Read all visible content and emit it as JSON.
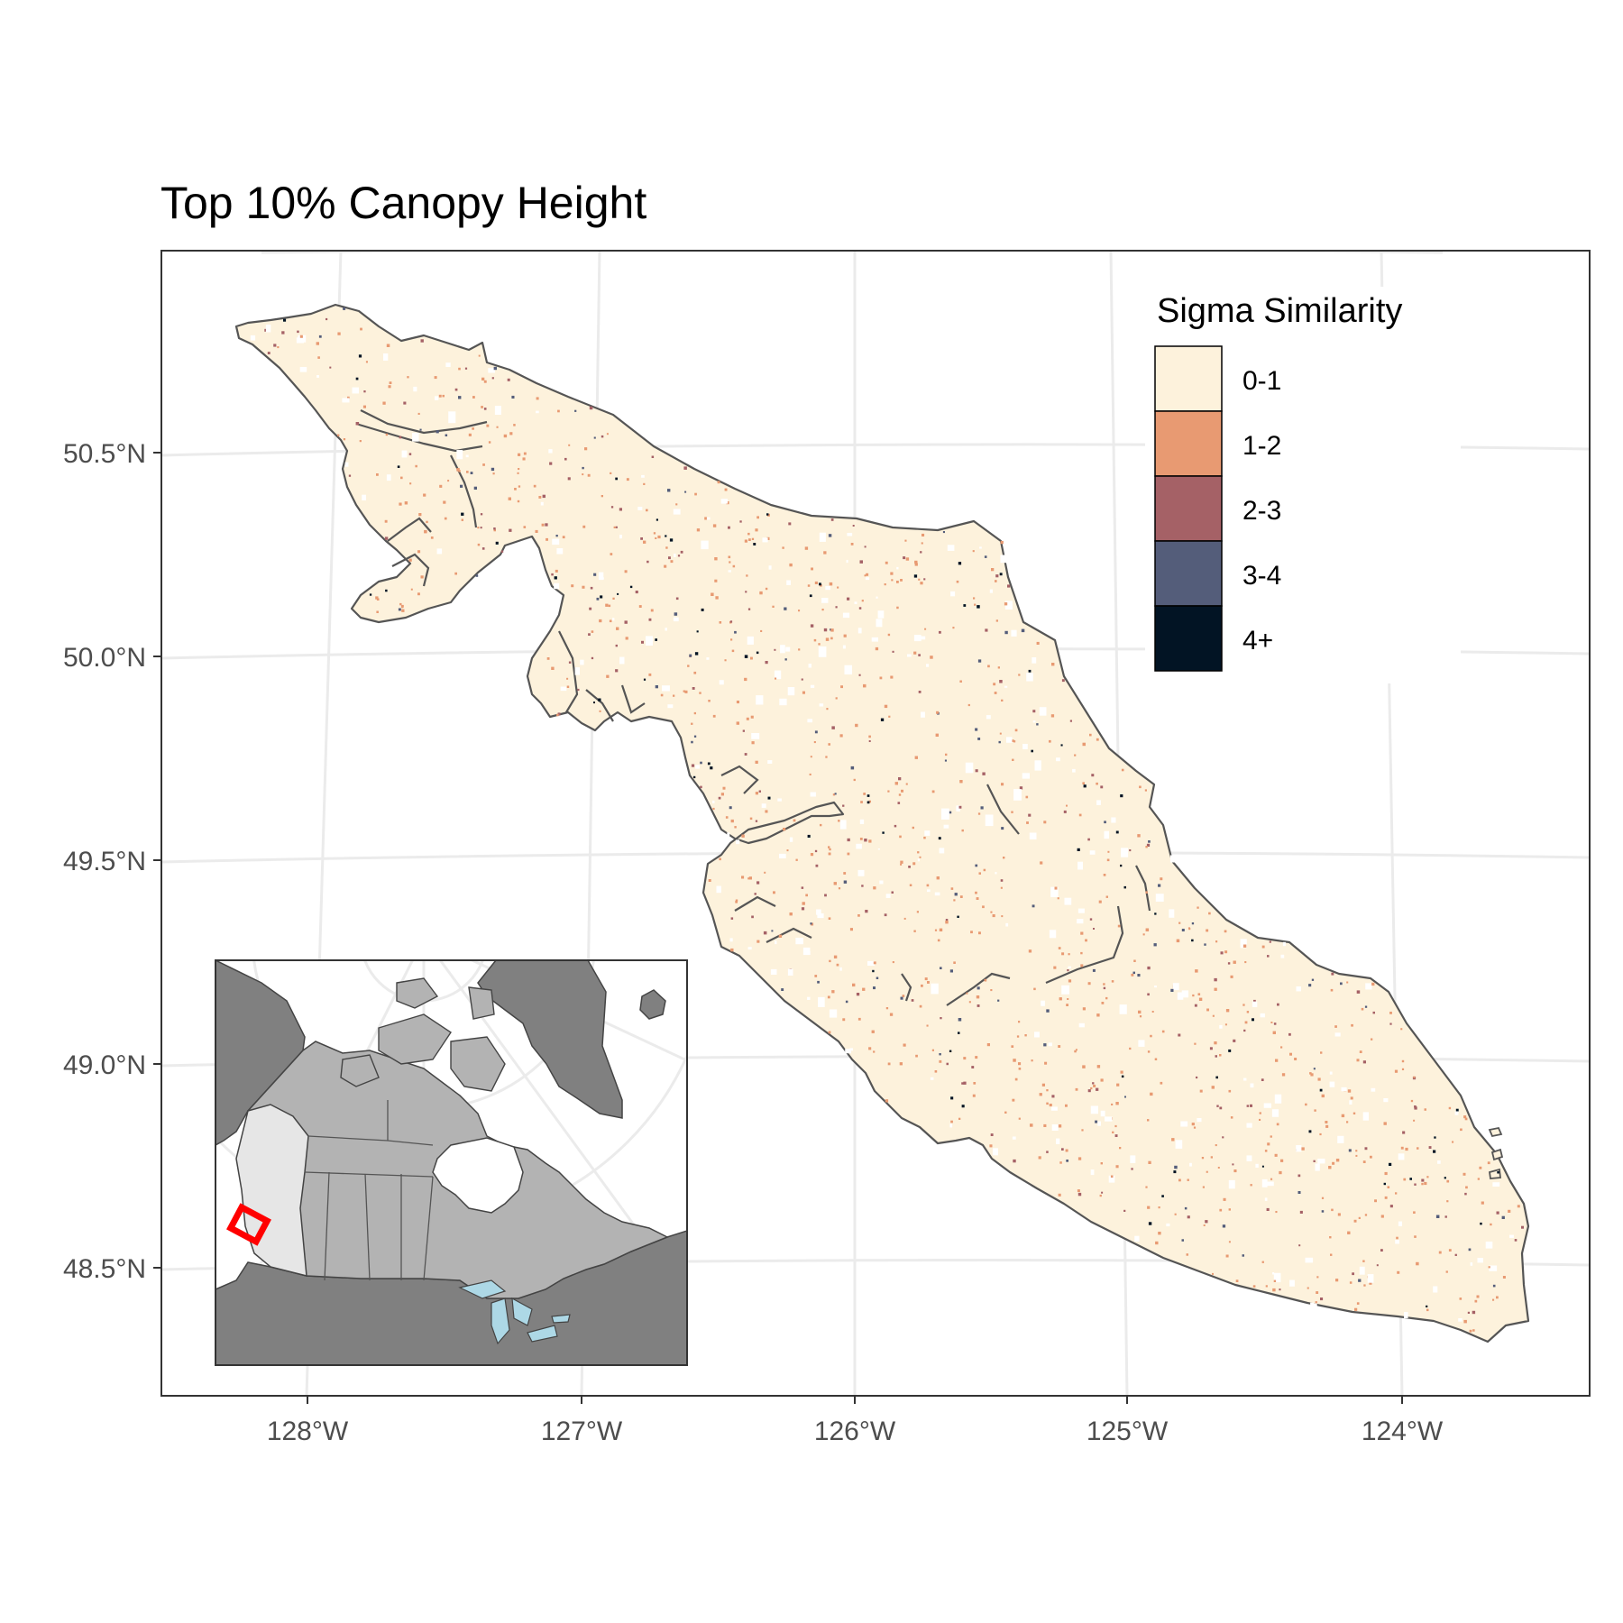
{
  "title": "Top 10% Canopy Height",
  "axes": {
    "y_ticks": [
      "50.5°N",
      "50.0°N",
      "49.5°N",
      "49.0°N",
      "48.5°N"
    ],
    "x_ticks": [
      "128°W",
      "127°W",
      "126°W",
      "125°W",
      "124°W"
    ]
  },
  "legend": {
    "title": "Sigma Similarity",
    "items": [
      {
        "label": "0-1",
        "color": "#fdf2dc"
      },
      {
        "label": "1-2",
        "color": "#e89a72"
      },
      {
        "label": "2-3",
        "color": "#a56166"
      },
      {
        "label": "3-4",
        "color": "#545d7a"
      },
      {
        "label": "4+",
        "color": "#021424"
      }
    ]
  },
  "colors": {
    "land_fill": "#fdf2dc",
    "coast_stroke": "#555555",
    "grid": "#ebebeb",
    "inset_us_greenland": "#808080",
    "inset_canada": "#b3b3b3",
    "inset_bc": "#e6e6e6",
    "inset_lakes": "#add8e6",
    "inset_marker": "#ff0000"
  }
}
